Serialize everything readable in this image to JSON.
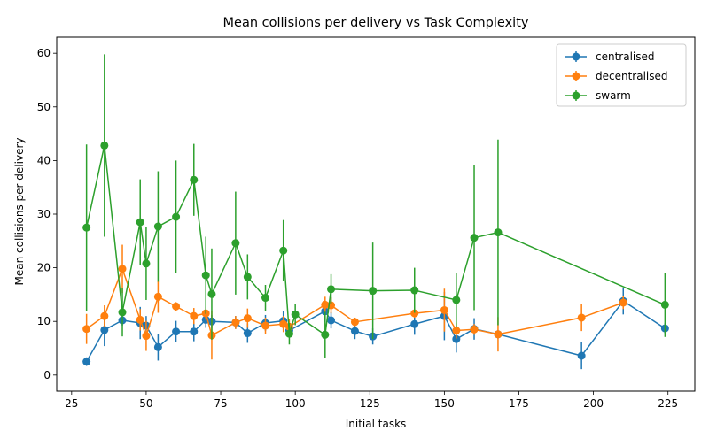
{
  "chart_data": {
    "type": "line",
    "title": "Mean collisions per delivery vs Task Complexity",
    "xlabel": "Initial tasks",
    "ylabel": "Mean collisions per delivery",
    "xlim": [
      20,
      234
    ],
    "ylim": [
      -3,
      63
    ],
    "xticks": [
      25,
      50,
      75,
      100,
      125,
      150,
      175,
      200,
      225
    ],
    "yticks": [
      0,
      10,
      20,
      30,
      40,
      50,
      60
    ],
    "legend_position": "top-right",
    "grid": false,
    "error_bars": true,
    "series": [
      {
        "name": "centralised",
        "color": "#1f77b4",
        "points": [
          {
            "x": 30,
            "y": 2.5,
            "err": 0.8
          },
          {
            "x": 36,
            "y": 8.4,
            "err": 3.0
          },
          {
            "x": 42,
            "y": 10.2,
            "err": 1.0
          },
          {
            "x": 48,
            "y": 9.7,
            "err": 3.0
          },
          {
            "x": 50,
            "y": 9.2,
            "err": 1.8
          },
          {
            "x": 54,
            "y": 5.2,
            "err": 2.5
          },
          {
            "x": 60,
            "y": 8.1,
            "err": 2.0
          },
          {
            "x": 66,
            "y": 8.1,
            "err": 1.8
          },
          {
            "x": 70,
            "y": 10.3,
            "err": 1.5
          },
          {
            "x": 72,
            "y": 10.0,
            "err": 1.2
          },
          {
            "x": 80,
            "y": 9.8,
            "err": 1.2
          },
          {
            "x": 84,
            "y": 7.8,
            "err": 1.8
          },
          {
            "x": 90,
            "y": 9.7,
            "err": 1.5
          },
          {
            "x": 96,
            "y": 10.1,
            "err": 1.8
          },
          {
            "x": 98,
            "y": 8.3,
            "err": 1.2
          },
          {
            "x": 110,
            "y": 11.9,
            "err": 2.0
          },
          {
            "x": 112,
            "y": 10.2,
            "err": 1.5
          },
          {
            "x": 120,
            "y": 8.2,
            "err": 1.5
          },
          {
            "x": 126,
            "y": 7.2,
            "err": 1.5
          },
          {
            "x": 140,
            "y": 9.5,
            "err": 2.0
          },
          {
            "x": 150,
            "y": 11.0,
            "err": 4.5
          },
          {
            "x": 154,
            "y": 6.7,
            "err": 2.5
          },
          {
            "x": 160,
            "y": 8.6,
            "err": 2.0
          },
          {
            "x": 168,
            "y": 7.6,
            "err": 0.8
          },
          {
            "x": 196,
            "y": 3.6,
            "err": 2.5
          },
          {
            "x": 210,
            "y": 13.8,
            "err": 2.5
          },
          {
            "x": 224,
            "y": 8.7,
            "err": 1.0
          }
        ]
      },
      {
        "name": "decentralised",
        "color": "#ff7f0e",
        "points": [
          {
            "x": 30,
            "y": 8.6,
            "err": 2.8
          },
          {
            "x": 36,
            "y": 11.0,
            "err": 2.0
          },
          {
            "x": 42,
            "y": 19.8,
            "err": 4.5
          },
          {
            "x": 48,
            "y": 10.3,
            "err": 2.0
          },
          {
            "x": 50,
            "y": 7.3,
            "err": 2.8
          },
          {
            "x": 54,
            "y": 14.6,
            "err": 3.0
          },
          {
            "x": 60,
            "y": 12.8,
            "err": 0.8
          },
          {
            "x": 66,
            "y": 11.0,
            "err": 1.5
          },
          {
            "x": 70,
            "y": 11.5,
            "err": 1.2
          },
          {
            "x": 72,
            "y": 7.4,
            "err": 4.5
          },
          {
            "x": 80,
            "y": 9.8,
            "err": 1.2
          },
          {
            "x": 84,
            "y": 10.6,
            "err": 1.8
          },
          {
            "x": 90,
            "y": 9.2,
            "err": 1.5
          },
          {
            "x": 96,
            "y": 9.5,
            "err": 1.5
          },
          {
            "x": 98,
            "y": 9.0,
            "err": 1.5
          },
          {
            "x": 110,
            "y": 13.1,
            "err": 1.5
          },
          {
            "x": 112,
            "y": 13.0,
            "err": 1.5
          },
          {
            "x": 120,
            "y": 9.9,
            "err": 0.8
          },
          {
            "x": 140,
            "y": 11.5,
            "err": 0.8
          },
          {
            "x": 150,
            "y": 12.1,
            "err": 4.0
          },
          {
            "x": 154,
            "y": 8.3,
            "err": 1.5
          },
          {
            "x": 160,
            "y": 8.5,
            "err": 1.0
          },
          {
            "x": 168,
            "y": 7.6,
            "err": 3.2
          },
          {
            "x": 196,
            "y": 10.7,
            "err": 2.5
          },
          {
            "x": 210,
            "y": 13.5,
            "err": 1.2
          }
        ]
      },
      {
        "name": "swarm",
        "color": "#2ca02c",
        "points": [
          {
            "x": 30,
            "y": 27.5,
            "err": 15.5
          },
          {
            "x": 36,
            "y": 42.8,
            "err": 17.0
          },
          {
            "x": 42,
            "y": 11.7,
            "err": 4.5
          },
          {
            "x": 48,
            "y": 28.5,
            "err": 8.0
          },
          {
            "x": 50,
            "y": 20.8,
            "err": 6.8
          },
          {
            "x": 54,
            "y": 27.7,
            "err": 10.3
          },
          {
            "x": 60,
            "y": 29.5,
            "err": 10.5
          },
          {
            "x": 66,
            "y": 36.4,
            "err": 6.7
          },
          {
            "x": 70,
            "y": 18.6,
            "err": 7.2
          },
          {
            "x": 72,
            "y": 15.1,
            "err": 8.5
          },
          {
            "x": 80,
            "y": 24.6,
            "err": 9.6
          },
          {
            "x": 84,
            "y": 18.3,
            "err": 4.2
          },
          {
            "x": 90,
            "y": 14.4,
            "err": 2.4
          },
          {
            "x": 96,
            "y": 23.2,
            "err": 5.7
          },
          {
            "x": 98,
            "y": 7.7,
            "err": 2.0
          },
          {
            "x": 100,
            "y": 11.3,
            "err": 2.0
          },
          {
            "x": 110,
            "y": 7.5,
            "err": 4.3
          },
          {
            "x": 112,
            "y": 16.0,
            "err": 2.8
          },
          {
            "x": 126,
            "y": 15.7,
            "err": 9.0
          },
          {
            "x": 140,
            "y": 15.8,
            "err": 4.2
          },
          {
            "x": 154,
            "y": 14.0,
            "err": 5.0
          },
          {
            "x": 160,
            "y": 25.6,
            "err": 13.5
          },
          {
            "x": 168,
            "y": 26.6,
            "err": 17.3
          },
          {
            "x": 224,
            "y": 13.1,
            "err": 6.0
          }
        ]
      }
    ]
  }
}
